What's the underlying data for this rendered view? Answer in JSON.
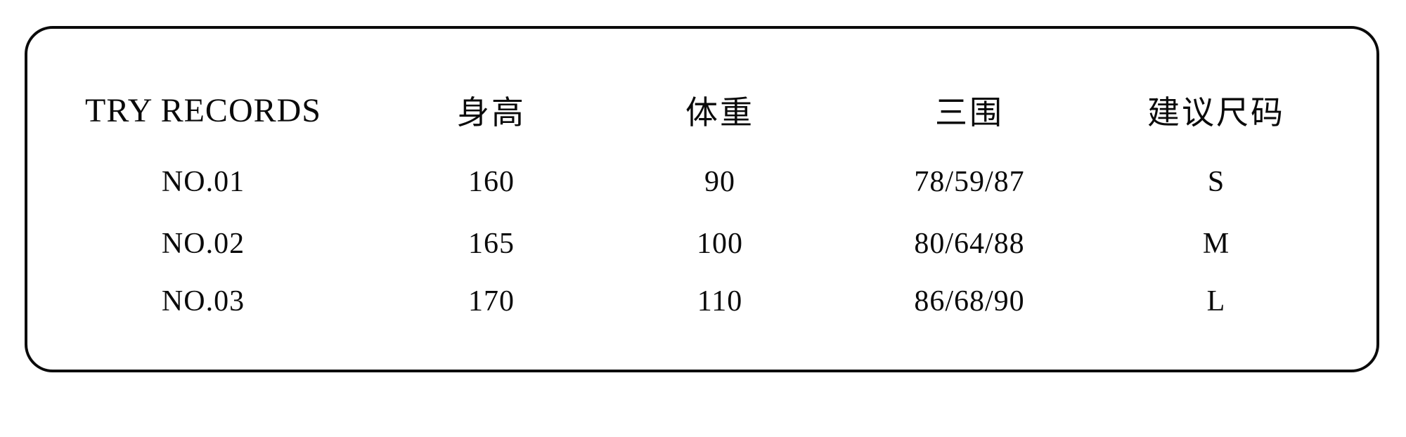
{
  "card": {
    "border_color": "#0a0a0a",
    "background_color": "#ffffff",
    "text_color": "#0a0a0a"
  },
  "chart_data": {
    "type": "table",
    "title": "TRY RECORDS",
    "columns": [
      "TRY RECORDS",
      "身高",
      "体重",
      "三围",
      "建议尺码"
    ],
    "rows": [
      [
        "NO.01",
        "160",
        "90",
        "78/59/87",
        "S"
      ],
      [
        "NO.02",
        "165",
        "100",
        "80/64/88",
        "M"
      ],
      [
        "NO.03",
        "170",
        "110",
        "86/68/90",
        "L"
      ]
    ],
    "layout": {
      "grid": "off",
      "header_position": "top",
      "alignment": "center"
    }
  }
}
